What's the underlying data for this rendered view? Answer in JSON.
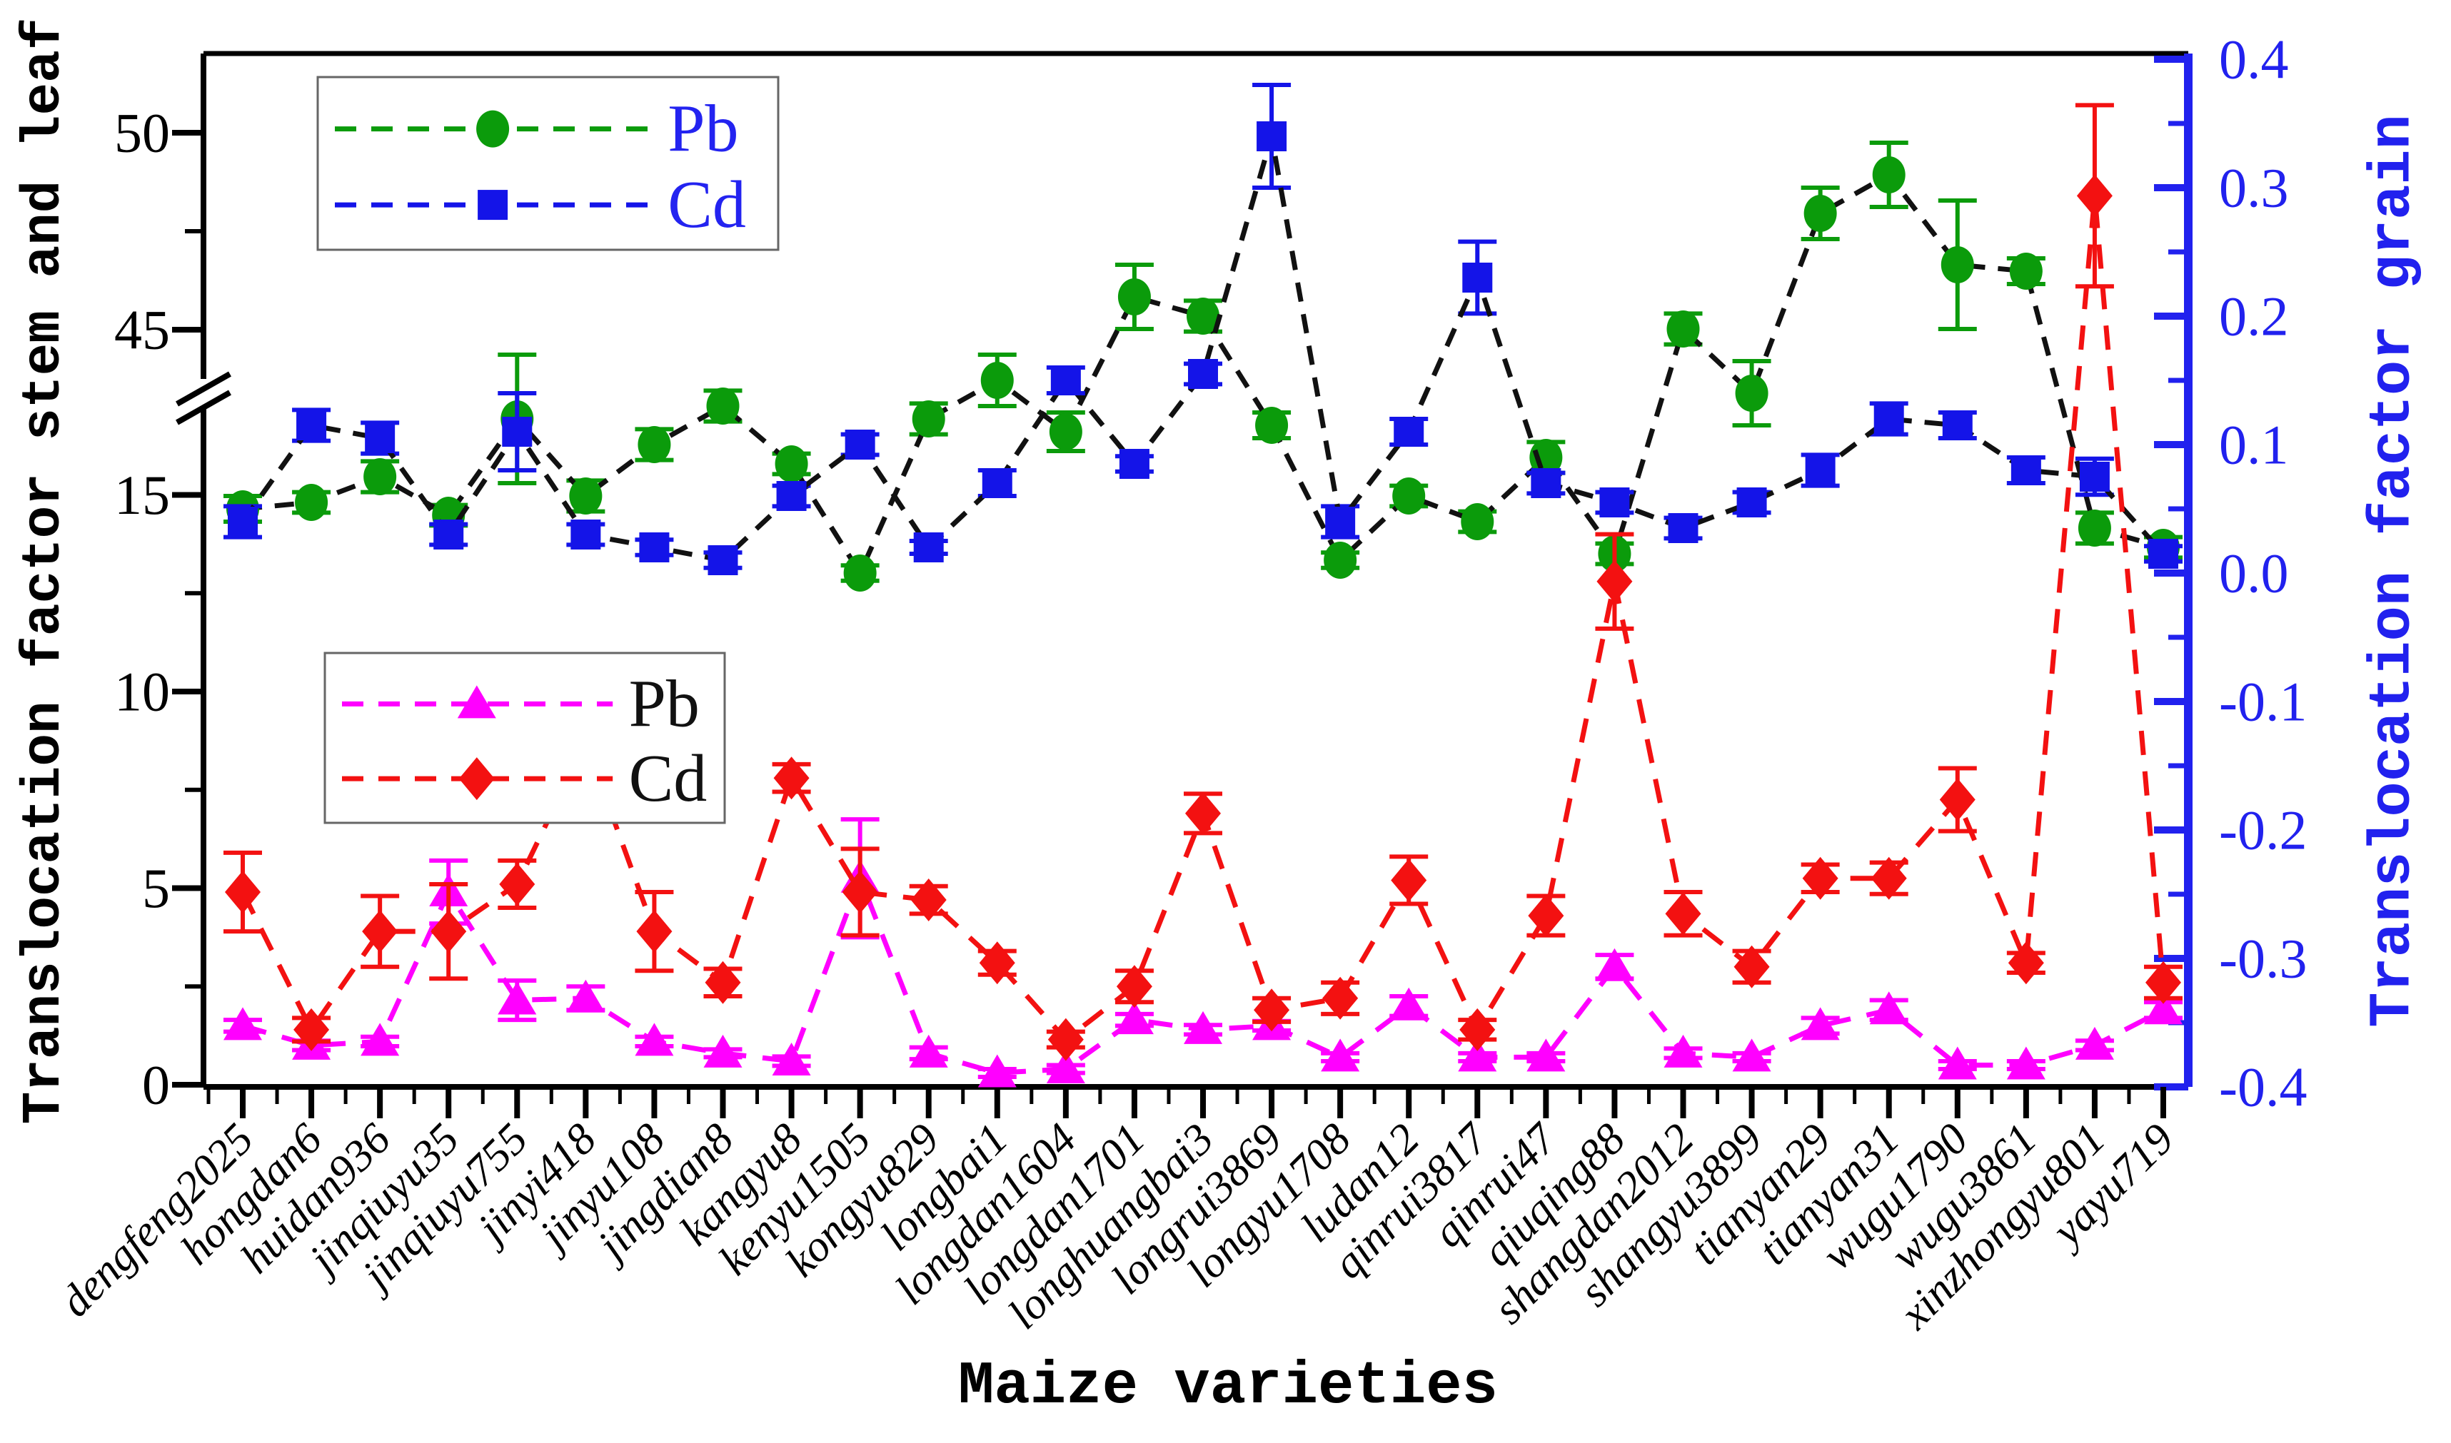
{
  "figure": {
    "xlabel": "Maize varieties",
    "left_axis_title": "Translocation factor stem and leaf",
    "right_axis_title": "Translocation factor grain",
    "left_axis_color": "#000000",
    "right_axis_color": "#2121ee",
    "legend_grain_text_color": "#2323f0",
    "legend_stem_text_color": "#111111"
  },
  "chart_data": {
    "type": "line",
    "title": "",
    "xlabel": "Maize varieties",
    "ylabel_left": "Translocation factor stem and leaf",
    "ylabel_right": "Translocation factor grain",
    "grid": false,
    "categories": [
      "dengfeng2025",
      "hongdan6",
      "huidan936",
      "jinqiuyu35",
      "jinqiuyu755",
      "jinyi418",
      "jinyu108",
      "jingdian8",
      "kangyu8",
      "kenyu1505",
      "kongyu829",
      "longbai1",
      "longdan1604",
      "longdan1701",
      "longhuangbai3",
      "longrui3869",
      "longyu1708",
      "ludan12",
      "qinrui3817",
      "qinrui47",
      "qiuqing88",
      "shangdan2012",
      "shangyu3899",
      "tianyan29",
      "tianyan31",
      "wugu1790",
      "wugu3861",
      "xinzhongyu801",
      "yayu719"
    ],
    "left_axis": {
      "label": "Translocation factor stem and leaf",
      "major_ticks": [
        0,
        5,
        10,
        15,
        45,
        50
      ],
      "minor_ticks": [
        2.5,
        7.5,
        12.5,
        47.5
      ],
      "axis_break": [
        16,
        44
      ]
    },
    "right_axis": {
      "label": "Translocation factor grain",
      "range": [
        -0.4,
        0.4
      ],
      "major_tick_labels": [
        "0.4",
        "0.3",
        "0.2",
        "0.1",
        "0.0",
        "-0.1",
        "-0.2",
        "-0.3",
        "-0.4"
      ]
    },
    "legends": {
      "grain": {
        "position": "top-left",
        "text_color": "#2323f0",
        "entries": [
          {
            "label": "Pb",
            "marker": "circle",
            "color": "#0b9b0b"
          },
          {
            "label": "Cd",
            "marker": "square",
            "color": "#1414e8"
          }
        ]
      },
      "stem_leaf": {
        "position": "middle-left",
        "text_color": "#111111",
        "entries": [
          {
            "label": "Pb",
            "marker": "triangle",
            "color": "#ff00ff"
          },
          {
            "label": "Cd",
            "marker": "diamond",
            "color": "#f31111"
          }
        ]
      }
    },
    "series": [
      {
        "id": "pb_grain",
        "name": "Pb (translocation factor grain)",
        "axis": "right",
        "marker": "circle",
        "marker_color": "#0b9b0b",
        "line_color": "#111111",
        "values": [
          0.05,
          0.055,
          0.075,
          0.045,
          0.12,
          0.06,
          0.1,
          0.13,
          0.085,
          0.0,
          0.12,
          0.15,
          0.11,
          0.215,
          0.2,
          0.115,
          0.01,
          0.06,
          0.04,
          0.09,
          0.015,
          0.19,
          0.14,
          0.28,
          0.31,
          0.24,
          0.235,
          0.035,
          0.02
        ],
        "errors": [
          0.01,
          0.008,
          0.012,
          0.008,
          0.05,
          0.012,
          0.012,
          0.012,
          0.008,
          0.006,
          0.012,
          0.02,
          0.015,
          0.025,
          0.012,
          0.01,
          0.006,
          0.008,
          0.008,
          0.012,
          0.008,
          0.012,
          0.025,
          0.02,
          0.025,
          0.05,
          0.01,
          0.012,
          0.008
        ]
      },
      {
        "id": "cd_grain",
        "name": "Cd (translocation factor grain)",
        "axis": "right",
        "marker": "square",
        "marker_color": "#1414e8",
        "line_color": "#111111",
        "values": [
          0.04,
          0.115,
          0.105,
          0.03,
          0.11,
          0.03,
          0.02,
          0.01,
          0.06,
          0.1,
          0.02,
          0.07,
          0.15,
          0.085,
          0.155,
          0.34,
          0.04,
          0.11,
          0.23,
          0.07,
          0.055,
          0.035,
          0.055,
          0.08,
          0.12,
          0.115,
          0.08,
          0.075,
          0.015
        ],
        "errors": [
          0.012,
          0.012,
          0.012,
          0.008,
          0.03,
          0.008,
          0.006,
          0.006,
          0.008,
          0.008,
          0.005,
          0.01,
          0.01,
          0.006,
          0.008,
          0.04,
          0.012,
          0.01,
          0.028,
          0.008,
          0.008,
          0.008,
          0.008,
          0.012,
          0.012,
          0.01,
          0.01,
          0.014,
          0.006
        ]
      },
      {
        "id": "pb_stem_leaf",
        "name": "Pb (translocation factor stem and leaf)",
        "axis": "left",
        "marker": "triangle",
        "marker_color": "#ff00ff",
        "line_color": "#ff00ff",
        "values": [
          1.5,
          1.0,
          1.1,
          4.9,
          2.15,
          2.2,
          1.1,
          0.8,
          0.6,
          5.25,
          0.8,
          0.3,
          0.4,
          1.65,
          1.4,
          1.5,
          0.7,
          2.0,
          0.7,
          0.7,
          3.0,
          0.8,
          0.7,
          1.5,
          1.9,
          0.5,
          0.5,
          1.0,
          1.9
        ],
        "errors": [
          0.15,
          0.12,
          0.12,
          0.8,
          0.5,
          0.3,
          0.12,
          0.1,
          0.12,
          1.5,
          0.15,
          0.1,
          0.1,
          0.15,
          0.12,
          0.12,
          0.1,
          0.25,
          0.1,
          0.1,
          0.3,
          0.12,
          0.1,
          0.2,
          0.25,
          0.1,
          0.1,
          0.12,
          0.2
        ]
      },
      {
        "id": "cd_stem_leaf",
        "name": "Cd (translocation factor stem and leaf)",
        "axis": "left",
        "marker": "diamond",
        "marker_color": "#f31111",
        "line_color": "#f31111",
        "values": [
          4.9,
          1.4,
          3.9,
          3.9,
          5.1,
          8.7,
          3.9,
          2.6,
          7.8,
          4.9,
          4.7,
          3.1,
          1.15,
          2.5,
          6.9,
          1.9,
          2.2,
          5.2,
          1.4,
          4.3,
          12.8,
          4.35,
          3.0,
          5.25,
          5.25,
          7.25,
          3.1,
          48.4,
          2.6
        ],
        "errors": [
          1.0,
          0.3,
          0.9,
          1.2,
          0.6,
          0.8,
          1.0,
          0.35,
          0.35,
          1.1,
          0.35,
          0.3,
          0.2,
          0.4,
          0.5,
          0.3,
          0.4,
          0.6,
          0.25,
          0.5,
          1.2,
          0.55,
          0.4,
          0.35,
          0.4,
          0.8,
          0.25,
          2.3,
          0.4
        ]
      }
    ]
  }
}
